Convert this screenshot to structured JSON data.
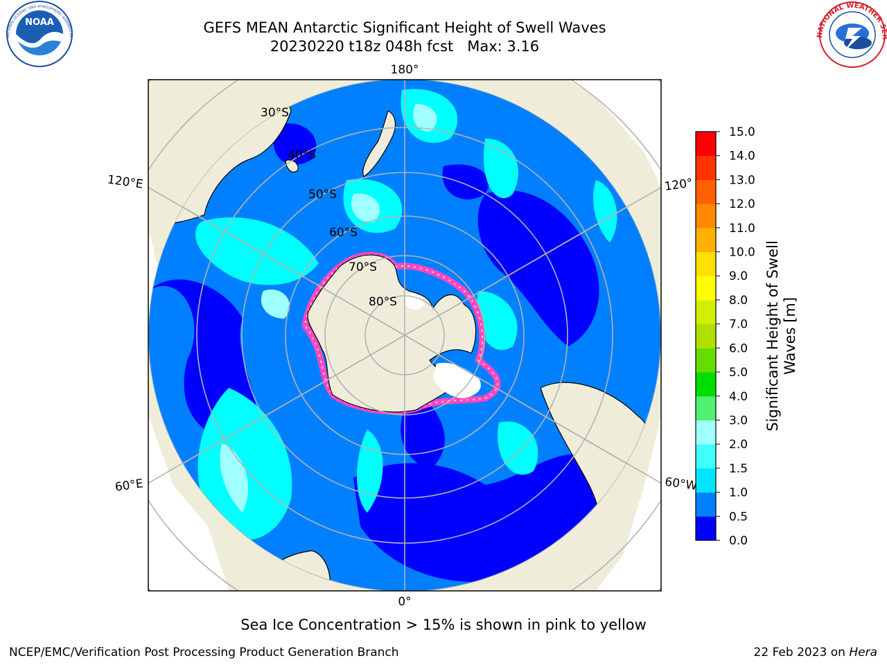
{
  "header": {
    "title_line1": "GEFS MEAN Antarctic Significant Height of Swell Waves",
    "title_line2": "20230220 t18z 048h fcst   Max: 3.16"
  },
  "logos": {
    "noaa": {
      "text": "NOAA",
      "ring_text": "NATIONAL OCEANIC AND ATMOSPHERIC ADMINISTRATION · U.S. DEPARTMENT OF COMMERCE"
    },
    "nws": {
      "ring_text": "NATIONAL WEATHER SERVICE"
    }
  },
  "map": {
    "longitude_labels": {
      "top": "180°",
      "bottom": "0°",
      "upper_left": "120°E",
      "upper_right": "120°",
      "lower_left": "60°E",
      "lower_right": "60°W"
    },
    "latitude_labels": [
      "30°S",
      "40°S",
      "50°S",
      "60°S",
      "70°S",
      "80°S"
    ],
    "colors": {
      "land": "#efedda",
      "ocean_dark": "#0000ff",
      "ocean_mid": "#0080ff",
      "ocean_light": "#00ffff",
      "ocean_pale": "#a0ffff",
      "graticule": "#b3b3b3",
      "sea_ice": "#ff44cc"
    }
  },
  "colorbar": {
    "label_line1": "Significant Height of Swell",
    "label_line2": "Waves [m]",
    "ticks": [
      "0.0",
      "0.5",
      "1.0",
      "1.5",
      "2.0",
      "3.0",
      "4.0",
      "5.0",
      "6.0",
      "7.0",
      "8.0",
      "9.0",
      "10.0",
      "11.0",
      "12.0",
      "13.0",
      "14.0",
      "15.0"
    ],
    "colors": [
      "#0000ff",
      "#0080ff",
      "#00e5ff",
      "#40ffff",
      "#a0ffff",
      "#50f070",
      "#00dd00",
      "#66dd00",
      "#b0e000",
      "#d0f000",
      "#ffff00",
      "#ffe000",
      "#ffb000",
      "#ff8800",
      "#ff6000",
      "#ff3300",
      "#ff0000"
    ]
  },
  "notes": {
    "sea_ice": "Sea Ice Concentration > 15% is shown in pink to yellow"
  },
  "footer": {
    "left": "NCEP/EMC/Verification Post Processing Product Generation Branch",
    "right_date": "22 Feb 2023 on",
    "right_machine": "Hera"
  }
}
